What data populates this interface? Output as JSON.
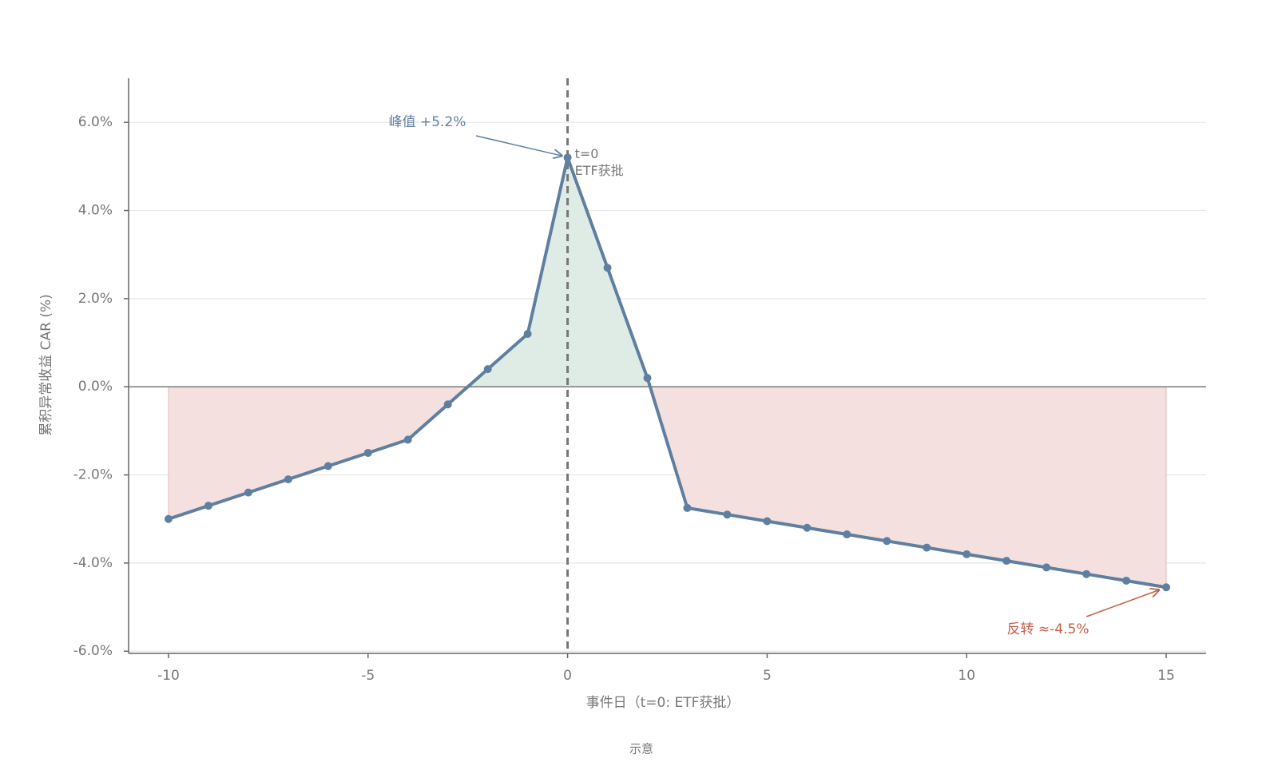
{
  "chart_data": {
    "type": "line",
    "xlabel": "事件日（t=0: ETF获批）",
    "ylabel": "累积异常收益 CAR (%)",
    "footer": "示意",
    "x": [
      -10,
      -9,
      -8,
      -7,
      -6,
      -5,
      -4,
      -3,
      -2,
      -1,
      0,
      1,
      2,
      3,
      4,
      5,
      6,
      7,
      8,
      9,
      10,
      11,
      12,
      13,
      14,
      15
    ],
    "series": [
      {
        "name": "CAR",
        "color": "#5f7fa0",
        "values": [
          -3.0,
          -2.7,
          -2.4,
          -2.1,
          -1.8,
          -1.5,
          -1.2,
          -0.4,
          0.4,
          1.2,
          5.2,
          2.7,
          0.2,
          -2.75,
          -2.9,
          -3.05,
          -3.2,
          -3.35,
          -3.5,
          -3.65,
          -3.8,
          -3.95,
          -4.1,
          -4.25,
          -4.4,
          -4.55
        ]
      }
    ],
    "positive_fill": "#dfebe5",
    "negative_fill": "#f3e0df",
    "xlim": [
      -11,
      16
    ],
    "ylim": [
      -6.05,
      7
    ],
    "xticks": [
      -10,
      -5,
      0,
      5,
      10,
      15
    ],
    "yticks": [
      {
        "value": -6,
        "label": "-6.0%"
      },
      {
        "value": -4,
        "label": "-4.0%"
      },
      {
        "value": -2,
        "label": "-2.0%"
      },
      {
        "value": 0,
        "label": "0.0%"
      },
      {
        "value": 2,
        "label": "2.0%"
      },
      {
        "value": 4,
        "label": "4.0%"
      },
      {
        "value": 6,
        "label": "6.0%"
      }
    ],
    "grid": true,
    "event_line": {
      "x": 0,
      "label": [
        "t=0",
        "ETF获批"
      ]
    },
    "annotations": [
      {
        "text": "峰值 +5.2%",
        "color": "#5f7fa0"
      },
      {
        "text": "反转 ≈-4.5%",
        "color": "#c0604a"
      }
    ]
  }
}
